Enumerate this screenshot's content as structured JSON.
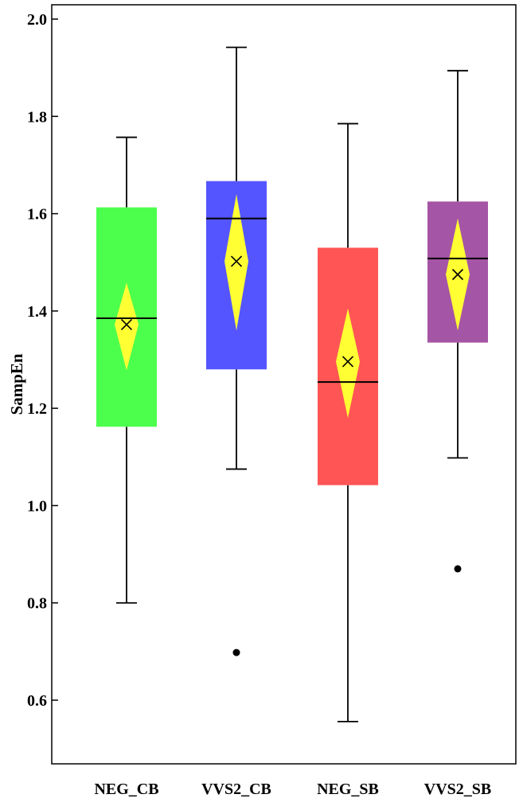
{
  "chart_data": {
    "type": "box",
    "ylabel": "SampEn",
    "xlabel": "",
    "title": "",
    "ylim": [
      0.45,
      2.03
    ],
    "yticks": [
      0.6,
      0.8,
      1.0,
      1.2,
      1.4,
      1.6,
      1.8,
      2.0
    ],
    "ytick_labels": [
      "0.6",
      "0.8",
      "1.0",
      "1.2",
      "1.4",
      "1.6",
      "1.8",
      "2.0"
    ],
    "grid": false,
    "groups": [
      {
        "label": "NEG_CB",
        "color": "#4dff4d",
        "whisker_low": 0.8,
        "q1": 1.162,
        "median": 1.385,
        "q3": 1.613,
        "whisker_high": 1.757,
        "mean": 1.372,
        "ci_low": 1.278,
        "ci_high": 1.458,
        "outliers": []
      },
      {
        "label": "VVS2_CB",
        "color": "#5555ff",
        "whisker_low": 1.075,
        "q1": 1.28,
        "median": 1.59,
        "q3": 1.667,
        "whisker_high": 1.942,
        "mean": 1.502,
        "ci_low": 1.36,
        "ci_high": 1.64,
        "outliers": [
          0.698
        ]
      },
      {
        "label": "NEG_SB",
        "color": "#ff5555",
        "whisker_low": 0.556,
        "q1": 1.042,
        "median": 1.254,
        "q3": 1.53,
        "whisker_high": 1.785,
        "mean": 1.296,
        "ci_low": 1.18,
        "ci_high": 1.405,
        "outliers": []
      },
      {
        "label": "VVS2_SB",
        "color": "#a555a5",
        "whisker_low": 1.098,
        "q1": 1.335,
        "median": 1.508,
        "q3": 1.625,
        "whisker_high": 1.894,
        "mean": 1.475,
        "ci_low": 1.36,
        "ci_high": 1.59,
        "outliers": [
          0.87
        ]
      }
    ],
    "mean_diamond_color": "#ffff33"
  }
}
